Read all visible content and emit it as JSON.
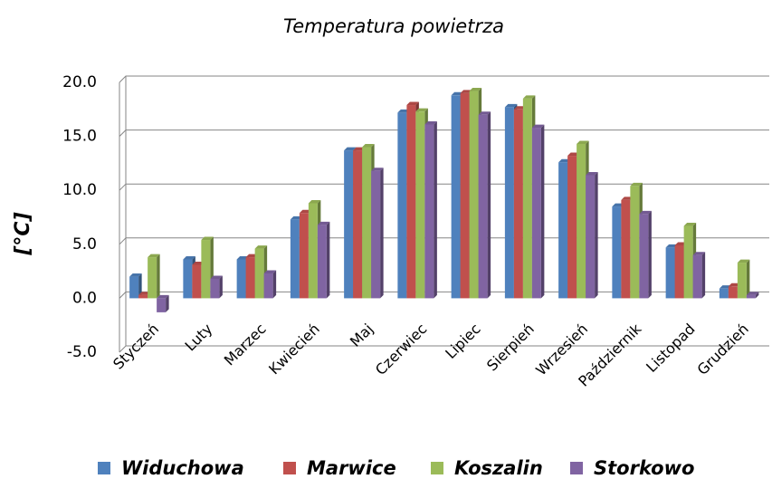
{
  "chart_data": {
    "type": "bar",
    "title": "Temperatura powietrza",
    "ylabel": "[°C]",
    "categories": [
      "Styczeń",
      "Luty",
      "Marzec",
      "Kwiecień",
      "Maj",
      "Czerwiec",
      "Lipiec",
      "Sierpień",
      "Wrzesień",
      "Październik",
      "Listopad",
      "Grudzień"
    ],
    "series": [
      {
        "name": "Widuchowa",
        "color": "#4f81bd",
        "values": [
          2.0,
          3.6,
          3.6,
          7.3,
          13.7,
          17.2,
          18.8,
          17.7,
          12.6,
          8.5,
          4.7,
          0.9
        ]
      },
      {
        "name": "Marwice",
        "color": "#c0504d",
        "values": [
          0.3,
          3.1,
          3.8,
          7.9,
          13.7,
          17.9,
          19.0,
          17.5,
          13.2,
          9.1,
          4.9,
          1.1
        ]
      },
      {
        "name": "Koszalin",
        "color": "#9bbb59",
        "values": [
          3.8,
          5.4,
          4.6,
          8.8,
          14.0,
          17.3,
          19.2,
          18.5,
          14.3,
          10.4,
          6.7,
          3.3
        ]
      },
      {
        "name": "Storkowo",
        "color": "#8064a2",
        "values": [
          -1.3,
          1.8,
          2.3,
          6.8,
          11.8,
          16.1,
          17.0,
          15.8,
          11.4,
          7.8,
          4.0,
          0.3
        ]
      }
    ],
    "ylim": [
      -5,
      20
    ],
    "yticks": [
      {
        "value": -5,
        "label": "-5.0"
      },
      {
        "value": 0,
        "label": "0.0"
      },
      {
        "value": 5,
        "label": "5.0"
      },
      {
        "value": 10,
        "label": "10.0"
      },
      {
        "value": 15,
        "label": "15.0"
      },
      {
        "value": 20,
        "label": "20.0"
      }
    ],
    "grid": true,
    "legend": "bottom"
  }
}
